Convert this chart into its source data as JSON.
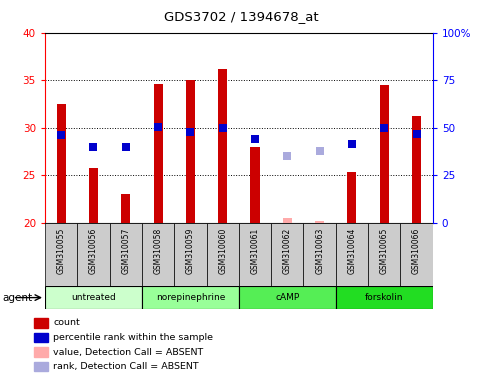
{
  "title": "GDS3702 / 1394678_at",
  "samples": [
    "GSM310055",
    "GSM310056",
    "GSM310057",
    "GSM310058",
    "GSM310059",
    "GSM310060",
    "GSM310061",
    "GSM310062",
    "GSM310063",
    "GSM310064",
    "GSM310065",
    "GSM310066"
  ],
  "count_values": [
    32.5,
    25.8,
    23.0,
    34.6,
    35.0,
    36.2,
    28.0,
    null,
    null,
    25.3,
    34.5,
    31.2
  ],
  "count_absent": [
    null,
    null,
    null,
    null,
    null,
    null,
    null,
    20.5,
    20.2,
    null,
    null,
    null
  ],
  "rank_values": [
    29.2,
    28.0,
    28.0,
    30.1,
    29.5,
    30.0,
    28.8,
    null,
    null,
    28.3,
    30.0,
    29.3
  ],
  "rank_absent": [
    null,
    null,
    null,
    null,
    null,
    null,
    null,
    27.0,
    27.5,
    null,
    null,
    null
  ],
  "ylim_left": [
    20,
    40
  ],
  "ylim_right": [
    0,
    100
  ],
  "yticks_left": [
    20,
    25,
    30,
    35,
    40
  ],
  "yticks_right": [
    0,
    25,
    50,
    75,
    100
  ],
  "yticklabels_right": [
    "0",
    "25",
    "50",
    "75",
    "100%"
  ],
  "count_color": "#cc0000",
  "rank_color": "#0000cc",
  "count_absent_color": "#ffaaaa",
  "rank_absent_color": "#aaaadd",
  "bar_width": 0.28,
  "legend_items": [
    {
      "label": "count",
      "color": "#cc0000"
    },
    {
      "label": "percentile rank within the sample",
      "color": "#0000cc"
    },
    {
      "label": "value, Detection Call = ABSENT",
      "color": "#ffaaaa"
    },
    {
      "label": "rank, Detection Call = ABSENT",
      "color": "#aaaadd"
    }
  ],
  "agent_groups": [
    {
      "label": "untreated",
      "start": 0,
      "end": 3,
      "color": "#ccffcc"
    },
    {
      "label": "norepinephrine",
      "start": 3,
      "end": 6,
      "color": "#99ff99"
    },
    {
      "label": "cAMP",
      "start": 6,
      "end": 9,
      "color": "#55ee55"
    },
    {
      "label": "forskolin",
      "start": 9,
      "end": 12,
      "color": "#22dd22"
    }
  ],
  "gridlines": [
    25,
    30,
    35
  ],
  "sample_box_color": "#cccccc",
  "plot_bg": "#ffffff"
}
